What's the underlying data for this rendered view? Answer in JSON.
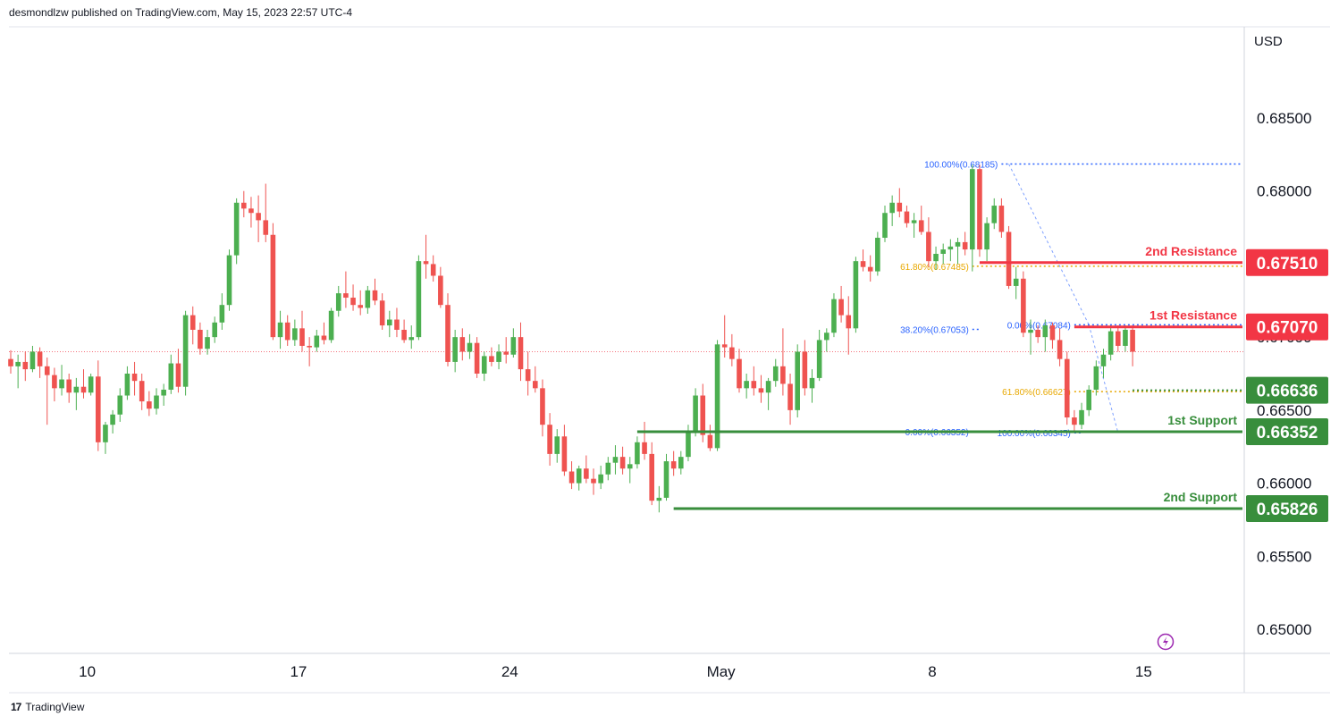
{
  "header": {
    "published": "desmondlzw published on TradingView.com, May 15, 2023 22:57 UTC-4"
  },
  "footer": {
    "brand": "TradingView",
    "logo_glyph": "17"
  },
  "chart_data": {
    "type": "candlestick",
    "currency_label": "USD",
    "y_ticks": [
      "0.68500",
      "0.68000",
      "0.67500",
      "0.67000",
      "0.66500",
      "0.66000",
      "0.65500",
      "0.65000"
    ],
    "y_tick_values": [
      0.685,
      0.68,
      0.675,
      0.67,
      0.665,
      0.66,
      0.655,
      0.65
    ],
    "ylim": [
      0.6475,
      0.6905
    ],
    "x_ticks": [
      {
        "label": "10",
        "bar": 10.5
      },
      {
        "label": "17",
        "bar": 39.5
      },
      {
        "label": "24",
        "bar": 68.5
      },
      {
        "label": "May",
        "bar": 97.5
      },
      {
        "label": "8",
        "bar": 126.5
      },
      {
        "label": "15",
        "bar": 155.5
      }
    ],
    "bar_count": 180,
    "current_price": 0.669,
    "levels": [
      {
        "label": "2nd Resistance",
        "value": 0.6751,
        "price_label": "0.67510",
        "color": "#f23645",
        "start_bar": 133
      },
      {
        "label": "1st Resistance",
        "value": 0.6707,
        "price_label": "0.67070",
        "color": "#f23645",
        "start_bar": 146
      },
      {
        "label": "",
        "value": 0.66636,
        "price_label": "0.66636",
        "color": "#388e3c",
        "start_bar": 154,
        "dotted": true
      },
      {
        "label": "1st Support",
        "value": 0.66352,
        "price_label": "0.66352",
        "color": "#388e3c",
        "start_bar": 86
      },
      {
        "label": "2nd Support",
        "value": 0.65826,
        "price_label": "0.65826",
        "color": "#388e3c",
        "start_bar": 91
      }
    ],
    "fib_labels": [
      {
        "text": "100.00%(0.68185)",
        "value": 0.68185,
        "bar": 136,
        "color": "#2962ff",
        "line_to_end": true
      },
      {
        "text": "61.80%(0.67485)",
        "value": 0.67485,
        "bar": 132,
        "color": "#e8a800",
        "line_to_end": true
      },
      {
        "text": "38.20%(0.67053)",
        "value": 0.67053,
        "bar": 132,
        "color": "#2962ff",
        "line_to_end": false
      },
      {
        "text": "0.00%(0.66352)",
        "value": 0.66352,
        "bar": 132,
        "color": "#2962ff",
        "line_to_end": false
      },
      {
        "text": "0.00%(0.67084)",
        "value": 0.67084,
        "bar": 146,
        "color": "#2962ff",
        "line_to_end": true
      },
      {
        "text": "61.80%(0.66627)",
        "value": 0.66627,
        "bar": 146,
        "color": "#e8a800",
        "line_to_end": true
      },
      {
        "text": "100.00%(0.66345)",
        "value": 0.66345,
        "bar": 146,
        "color": "#2962ff",
        "line_to_end": false
      }
    ],
    "colors": {
      "up": "#089981",
      "up_body": "#4caf50",
      "down": "#f23645",
      "down_body": "#ef5350",
      "grid": "#ffffff",
      "text": "#131722"
    },
    "candles": [
      [
        0.6685,
        0.6691,
        0.6675,
        0.668
      ],
      [
        0.668,
        0.6688,
        0.6665,
        0.6683
      ],
      [
        0.6683,
        0.669,
        0.667,
        0.6678
      ],
      [
        0.6678,
        0.6694,
        0.6676,
        0.669
      ],
      [
        0.669,
        0.6693,
        0.6672,
        0.668
      ],
      [
        0.668,
        0.6686,
        0.664,
        0.6674
      ],
      [
        0.6674,
        0.6679,
        0.6656,
        0.6665
      ],
      [
        0.6665,
        0.6681,
        0.666,
        0.6671
      ],
      [
        0.6671,
        0.6675,
        0.6655,
        0.6662
      ],
      [
        0.6662,
        0.6672,
        0.665,
        0.6666
      ],
      [
        0.6666,
        0.6678,
        0.6658,
        0.6662
      ],
      [
        0.6662,
        0.6675,
        0.666,
        0.6673
      ],
      [
        0.6673,
        0.6684,
        0.6622,
        0.6628
      ],
      [
        0.6628,
        0.6642,
        0.662,
        0.664
      ],
      [
        0.664,
        0.665,
        0.6634,
        0.6647
      ],
      [
        0.6647,
        0.6665,
        0.6642,
        0.666
      ],
      [
        0.666,
        0.668,
        0.6657,
        0.6675
      ],
      [
        0.6675,
        0.6683,
        0.666,
        0.667
      ],
      [
        0.667,
        0.6675,
        0.665,
        0.6656
      ],
      [
        0.6656,
        0.6663,
        0.6646,
        0.6651
      ],
      [
        0.6651,
        0.6665,
        0.6647,
        0.666
      ],
      [
        0.666,
        0.6668,
        0.6653,
        0.6664
      ],
      [
        0.6664,
        0.6688,
        0.6661,
        0.6682
      ],
      [
        0.6682,
        0.6692,
        0.6662,
        0.6666
      ],
      [
        0.6666,
        0.6718,
        0.666,
        0.6715
      ],
      [
        0.6715,
        0.6721,
        0.6695,
        0.6705
      ],
      [
        0.6705,
        0.671,
        0.6688,
        0.6692
      ],
      [
        0.6692,
        0.6705,
        0.6688,
        0.67
      ],
      [
        0.67,
        0.6714,
        0.6696,
        0.671
      ],
      [
        0.671,
        0.673,
        0.6705,
        0.6722
      ],
      [
        0.6722,
        0.676,
        0.6718,
        0.6756
      ],
      [
        0.6756,
        0.6795,
        0.675,
        0.6792
      ],
      [
        0.6792,
        0.68,
        0.6782,
        0.6788
      ],
      [
        0.6788,
        0.6796,
        0.6775,
        0.6785
      ],
      [
        0.6785,
        0.6797,
        0.6765,
        0.678
      ],
      [
        0.678,
        0.6805,
        0.6765,
        0.677
      ],
      [
        0.677,
        0.6778,
        0.6698,
        0.67
      ],
      [
        0.67,
        0.6718,
        0.6692,
        0.671
      ],
      [
        0.671,
        0.6715,
        0.6694,
        0.6698
      ],
      [
        0.6698,
        0.6712,
        0.6694,
        0.6706
      ],
      [
        0.6706,
        0.6718,
        0.669,
        0.6694
      ],
      [
        0.6694,
        0.67,
        0.668,
        0.6693
      ],
      [
        0.6693,
        0.6705,
        0.669,
        0.6701
      ],
      [
        0.6701,
        0.671,
        0.6695,
        0.6698
      ],
      [
        0.6698,
        0.672,
        0.6696,
        0.6718
      ],
      [
        0.6718,
        0.6735,
        0.6714,
        0.673
      ],
      [
        0.673,
        0.6745,
        0.672,
        0.6727
      ],
      [
        0.6727,
        0.6736,
        0.6718,
        0.6722
      ],
      [
        0.6722,
        0.6732,
        0.6715,
        0.672
      ],
      [
        0.672,
        0.6735,
        0.6716,
        0.6732
      ],
      [
        0.6732,
        0.674,
        0.6722,
        0.6725
      ],
      [
        0.6725,
        0.673,
        0.6705,
        0.6708
      ],
      [
        0.6708,
        0.6718,
        0.67,
        0.6712
      ],
      [
        0.6712,
        0.672,
        0.67,
        0.6705
      ],
      [
        0.6705,
        0.6712,
        0.6696,
        0.6698
      ],
      [
        0.6698,
        0.6708,
        0.6692,
        0.67
      ],
      [
        0.67,
        0.6756,
        0.6698,
        0.6752
      ],
      [
        0.6752,
        0.677,
        0.674,
        0.675
      ],
      [
        0.675,
        0.6756,
        0.6738,
        0.6742
      ],
      [
        0.6742,
        0.6748,
        0.672,
        0.6722
      ],
      [
        0.6722,
        0.673,
        0.668,
        0.6683
      ],
      [
        0.6683,
        0.6705,
        0.6676,
        0.67
      ],
      [
        0.67,
        0.6706,
        0.6684,
        0.669
      ],
      [
        0.669,
        0.6702,
        0.6685,
        0.6696
      ],
      [
        0.6696,
        0.67,
        0.6672,
        0.6675
      ],
      [
        0.6675,
        0.669,
        0.667,
        0.6687
      ],
      [
        0.6687,
        0.6693,
        0.668,
        0.6683
      ],
      [
        0.6683,
        0.6695,
        0.6678,
        0.669
      ],
      [
        0.669,
        0.67,
        0.6682,
        0.6688
      ],
      [
        0.6688,
        0.6706,
        0.6686,
        0.67
      ],
      [
        0.67,
        0.671,
        0.667,
        0.6678
      ],
      [
        0.6678,
        0.669,
        0.666,
        0.667
      ],
      [
        0.667,
        0.668,
        0.6662,
        0.6665
      ],
      [
        0.6665,
        0.6671,
        0.6632,
        0.664
      ],
      [
        0.664,
        0.6648,
        0.6612,
        0.662
      ],
      [
        0.662,
        0.6637,
        0.6614,
        0.6632
      ],
      [
        0.6632,
        0.664,
        0.6605,
        0.6608
      ],
      [
        0.6608,
        0.6615,
        0.6596,
        0.66
      ],
      [
        0.66,
        0.6612,
        0.6595,
        0.661
      ],
      [
        0.661,
        0.6619,
        0.66,
        0.6603
      ],
      [
        0.6603,
        0.661,
        0.6592,
        0.66
      ],
      [
        0.66,
        0.6612,
        0.6596,
        0.6606
      ],
      [
        0.6606,
        0.6618,
        0.6602,
        0.6614
      ],
      [
        0.6614,
        0.6626,
        0.6606,
        0.6618
      ],
      [
        0.6618,
        0.6625,
        0.6606,
        0.661
      ],
      [
        0.661,
        0.6618,
        0.66,
        0.6613
      ],
      [
        0.6613,
        0.6632,
        0.661,
        0.6628
      ],
      [
        0.6628,
        0.6642,
        0.6616,
        0.662
      ],
      [
        0.662,
        0.6628,
        0.6585,
        0.6588
      ],
      [
        0.6588,
        0.6598,
        0.658,
        0.659
      ],
      [
        0.659,
        0.662,
        0.6588,
        0.6615
      ],
      [
        0.6615,
        0.6622,
        0.6605,
        0.661
      ],
      [
        0.661,
        0.6622,
        0.6606,
        0.6618
      ],
      [
        0.6618,
        0.664,
        0.6615,
        0.6635
      ],
      [
        0.6635,
        0.6665,
        0.6632,
        0.666
      ],
      [
        0.666,
        0.6668,
        0.6628,
        0.6633
      ],
      [
        0.6633,
        0.664,
        0.6622,
        0.6624
      ],
      [
        0.6624,
        0.6698,
        0.6622,
        0.6695
      ],
      [
        0.6695,
        0.6715,
        0.6686,
        0.6693
      ],
      [
        0.6693,
        0.6702,
        0.668,
        0.6685
      ],
      [
        0.6685,
        0.6692,
        0.6662,
        0.6665
      ],
      [
        0.6665,
        0.6675,
        0.6658,
        0.667
      ],
      [
        0.667,
        0.668,
        0.666,
        0.6665
      ],
      [
        0.6665,
        0.6674,
        0.6655,
        0.6662
      ],
      [
        0.6662,
        0.6672,
        0.665,
        0.667
      ],
      [
        0.667,
        0.6685,
        0.6666,
        0.668
      ],
      [
        0.668,
        0.6706,
        0.666,
        0.6668
      ],
      [
        0.6668,
        0.6675,
        0.664,
        0.665
      ],
      [
        0.665,
        0.6695,
        0.6645,
        0.669
      ],
      [
        0.669,
        0.6698,
        0.666,
        0.6665
      ],
      [
        0.6665,
        0.6678,
        0.6655,
        0.6672
      ],
      [
        0.6672,
        0.6705,
        0.667,
        0.6698
      ],
      [
        0.6698,
        0.6706,
        0.669,
        0.6703
      ],
      [
        0.6703,
        0.673,
        0.67,
        0.6726
      ],
      [
        0.6726,
        0.6735,
        0.671,
        0.6715
      ],
      [
        0.6715,
        0.6728,
        0.6688,
        0.6706
      ],
      [
        0.6706,
        0.6755,
        0.6703,
        0.6752
      ],
      [
        0.6752,
        0.676,
        0.6745,
        0.6748
      ],
      [
        0.6748,
        0.6756,
        0.6738,
        0.6745
      ],
      [
        0.6745,
        0.6772,
        0.6742,
        0.6768
      ],
      [
        0.6768,
        0.679,
        0.6765,
        0.6785
      ],
      [
        0.6785,
        0.6797,
        0.6776,
        0.6792
      ],
      [
        0.6792,
        0.6802,
        0.6782,
        0.6786
      ],
      [
        0.6786,
        0.679,
        0.6775,
        0.6778
      ],
      [
        0.6778,
        0.6785,
        0.6768,
        0.678
      ],
      [
        0.678,
        0.679,
        0.677,
        0.6772
      ],
      [
        0.6772,
        0.6782,
        0.6748,
        0.6752
      ],
      [
        0.6752,
        0.6762,
        0.6746,
        0.6757
      ],
      [
        0.6757,
        0.6764,
        0.675,
        0.676
      ],
      [
        0.676,
        0.6767,
        0.6752,
        0.6762
      ],
      [
        0.6762,
        0.6768,
        0.675,
        0.6765
      ],
      [
        0.6765,
        0.6772,
        0.6756,
        0.676
      ],
      [
        0.676,
        0.6818,
        0.6745,
        0.6815
      ],
      [
        0.6815,
        0.6818,
        0.6755,
        0.676
      ],
      [
        0.676,
        0.6782,
        0.6752,
        0.6778
      ],
      [
        0.6778,
        0.6795,
        0.6774,
        0.679
      ],
      [
        0.679,
        0.6795,
        0.6768,
        0.6772
      ],
      [
        0.6772,
        0.6776,
        0.6733,
        0.6735
      ],
      [
        0.6735,
        0.6748,
        0.6726,
        0.674
      ],
      [
        0.674,
        0.6745,
        0.67,
        0.6703
      ],
      [
        0.6703,
        0.6712,
        0.6688,
        0.6705
      ],
      [
        0.6705,
        0.6708,
        0.6696,
        0.67
      ],
      [
        0.67,
        0.6712,
        0.669,
        0.6708
      ],
      [
        0.6708,
        0.671,
        0.6692,
        0.6698
      ],
      [
        0.6698,
        0.6706,
        0.668,
        0.6685
      ],
      [
        0.6685,
        0.669,
        0.664,
        0.6645
      ],
      [
        0.6645,
        0.665,
        0.6635,
        0.664
      ],
      [
        0.664,
        0.6655,
        0.6637,
        0.665
      ],
      [
        0.665,
        0.6667,
        0.6646,
        0.6664
      ],
      [
        0.6664,
        0.6684,
        0.666,
        0.668
      ],
      [
        0.668,
        0.6692,
        0.6672,
        0.6688
      ],
      [
        0.6688,
        0.6708,
        0.6684,
        0.6704
      ],
      [
        0.6704,
        0.6708,
        0.669,
        0.6694
      ],
      [
        0.6694,
        0.6708,
        0.669,
        0.6705
      ],
      [
        0.6705,
        0.6708,
        0.668,
        0.669
      ]
    ]
  }
}
